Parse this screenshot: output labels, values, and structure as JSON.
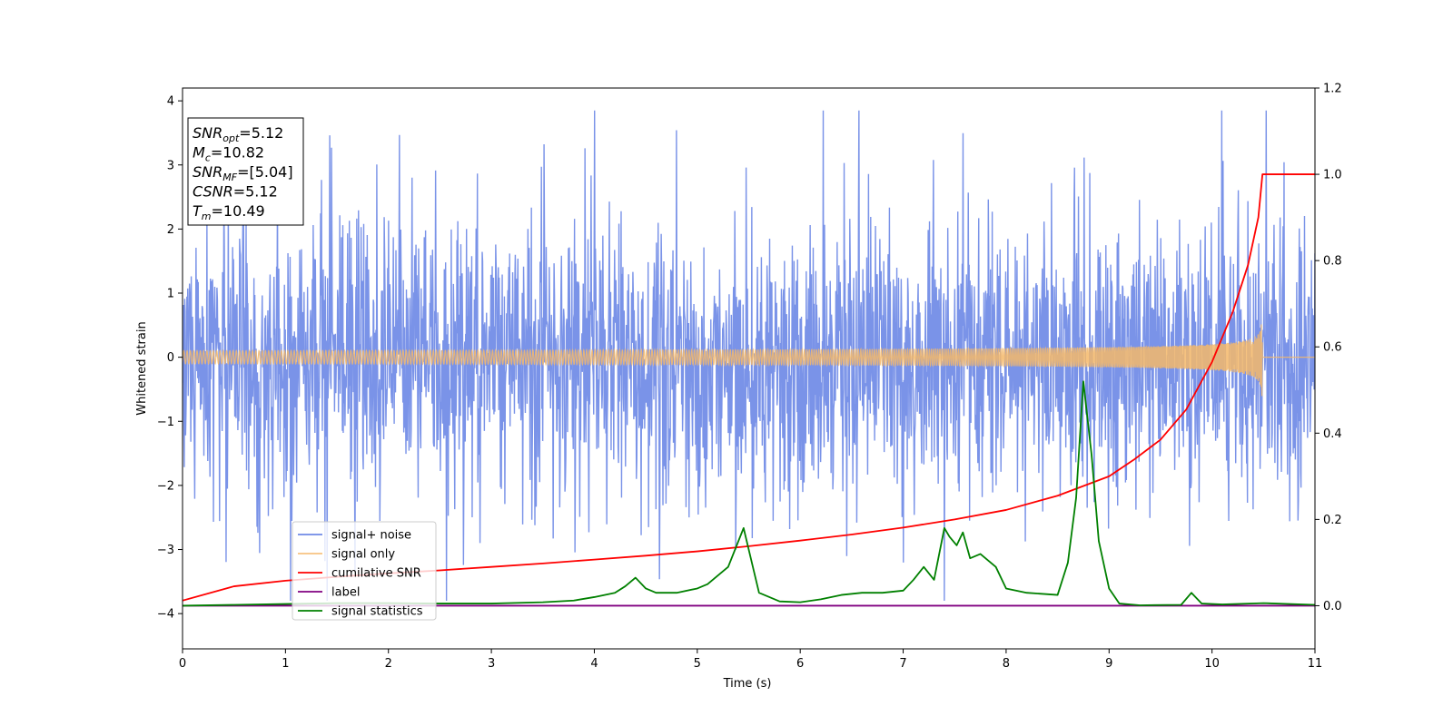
{
  "chart_data": {
    "type": "line",
    "xlabel": "Time (s)",
    "ylabel": "Whitened strain",
    "xlim": [
      0,
      11
    ],
    "ylim_left": [
      -4.55,
      4.2
    ],
    "ylim_right": [
      -0.1,
      1.2
    ],
    "x_ticks": [
      0,
      1,
      2,
      3,
      4,
      5,
      6,
      7,
      8,
      9,
      10,
      11
    ],
    "y_ticks_left": [
      -4,
      -3,
      -2,
      -1,
      0,
      1,
      2,
      3,
      4
    ],
    "y_ticks_right": [
      0.0,
      0.2,
      0.4,
      0.6,
      0.8,
      1.0,
      1.2
    ],
    "y_tick_labels_left": [
      "−4",
      "−3",
      "−2",
      "−1",
      "0",
      "1",
      "2",
      "3",
      "4"
    ],
    "y_tick_labels_right": [
      "0.0",
      "0.2",
      "0.4",
      "0.6",
      "0.8",
      "1.0",
      "1.2"
    ],
    "legend_position": "lower-left",
    "grid": false,
    "series": [
      {
        "name": "signal+ noise",
        "axis": "left",
        "color": "#6f8ae6",
        "style": "noise",
        "approx_envelope": [
          -3.8,
          3.85
        ]
      },
      {
        "name": "signal only",
        "axis": "left",
        "color": "#f5b86a",
        "style": "chirp",
        "merger_time": 10.49,
        "peak_amplitude_left": 0.65
      },
      {
        "name": "cumilative SNR",
        "axis": "right",
        "color": "#ff0000",
        "x": [
          0,
          0.5,
          1,
          1.5,
          2,
          2.5,
          3,
          3.5,
          4,
          4.5,
          5,
          5.5,
          6,
          6.5,
          7,
          7.5,
          8,
          8.5,
          9,
          9.25,
          9.5,
          9.75,
          10,
          10.2,
          10.35,
          10.45,
          10.49,
          11
        ],
        "y": [
          0.012,
          0.045,
          0.058,
          0.067,
          0.075,
          0.082,
          0.09,
          0.098,
          0.107,
          0.116,
          0.126,
          0.138,
          0.151,
          0.165,
          0.181,
          0.2,
          0.222,
          0.255,
          0.3,
          0.34,
          0.385,
          0.455,
          0.565,
          0.68,
          0.79,
          0.9,
          1.0,
          1.0
        ]
      },
      {
        "name": "label",
        "axis": "right",
        "color": "#800080",
        "x": [
          0,
          11
        ],
        "y": [
          0.0,
          0.0
        ]
      },
      {
        "name": "signal statistics",
        "axis": "right",
        "color": "#008000",
        "x": [
          0,
          0.5,
          1,
          1.5,
          2,
          2.5,
          3,
          3.5,
          3.8,
          4,
          4.2,
          4.3,
          4.4,
          4.5,
          4.6,
          4.8,
          5,
          5.1,
          5.3,
          5.45,
          5.55,
          5.6,
          5.8,
          6,
          6.2,
          6.4,
          6.6,
          6.8,
          7,
          7.1,
          7.2,
          7.3,
          7.4,
          7.45,
          7.52,
          7.58,
          7.65,
          7.75,
          7.85,
          7.9,
          8,
          8.2,
          8.5,
          8.6,
          8.68,
          8.75,
          8.83,
          8.9,
          9.0,
          9.1,
          9.3,
          9.7,
          9.8,
          9.9,
          10.1,
          10.5,
          11
        ],
        "y": [
          0.0,
          0.002,
          0.004,
          0.006,
          0.006,
          0.005,
          0.005,
          0.008,
          0.012,
          0.02,
          0.03,
          0.045,
          0.065,
          0.04,
          0.03,
          0.03,
          0.04,
          0.05,
          0.09,
          0.18,
          0.08,
          0.03,
          0.01,
          0.008,
          0.015,
          0.025,
          0.03,
          0.03,
          0.035,
          0.06,
          0.09,
          0.06,
          0.18,
          0.16,
          0.14,
          0.17,
          0.11,
          0.12,
          0.1,
          0.09,
          0.04,
          0.03,
          0.025,
          0.1,
          0.25,
          0.52,
          0.35,
          0.15,
          0.04,
          0.005,
          0.001,
          0.002,
          0.03,
          0.005,
          0.003,
          0.006,
          0.002
        ]
      }
    ],
    "annotation": {
      "lines": [
        {
          "sym": "SNR",
          "sub": "opt",
          "text": "=5.12"
        },
        {
          "sym": "M",
          "sub": "c",
          "text": "=10.82"
        },
        {
          "sym": "SNR",
          "sub": "MF",
          "text": "=[5.04]"
        },
        {
          "sym": "CSNR",
          "sub": "",
          "text": "=5.12"
        },
        {
          "sym": "T",
          "sub": "m",
          "text": "=10.49"
        }
      ]
    }
  }
}
